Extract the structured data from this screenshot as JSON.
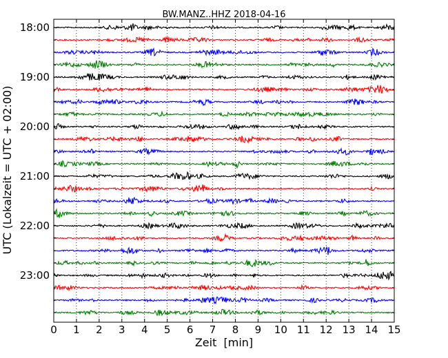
{
  "chart_data": {
    "type": "line",
    "title": "BW.MANZ..HHZ 2018-04-16",
    "xlabel": "Zeit  [min]",
    "ylabel": "UTC (Lokalzeit = UTC + 02:00)",
    "xlim": [
      0,
      15
    ],
    "x_ticks": [
      "0",
      "1",
      "2",
      "3",
      "4",
      "5",
      "6",
      "7",
      "8",
      "9",
      "10",
      "11",
      "12",
      "13",
      "14",
      "15"
    ],
    "y_tick_labels": [
      "18:00",
      "19:00",
      "20:00",
      "21:00",
      "22:00",
      "23:00"
    ],
    "grid": "vertical-dotted",
    "series_colors": [
      "#000000",
      "#ff0000",
      "#0000ff",
      "#007f00"
    ],
    "traces": [
      {
        "start": "18:00"
      },
      {
        "start": "18:15"
      },
      {
        "start": "18:30"
      },
      {
        "start": "18:45"
      },
      {
        "start": "19:00"
      },
      {
        "start": "19:15"
      },
      {
        "start": "19:30"
      },
      {
        "start": "19:45"
      },
      {
        "start": "20:00"
      },
      {
        "start": "20:15"
      },
      {
        "start": "20:30"
      },
      {
        "start": "20:45"
      },
      {
        "start": "21:00"
      },
      {
        "start": "21:15"
      },
      {
        "start": "21:30"
      },
      {
        "start": "21:45"
      },
      {
        "start": "22:00"
      },
      {
        "start": "22:15"
      },
      {
        "start": "22:30"
      },
      {
        "start": "22:45"
      },
      {
        "start": "23:00"
      },
      {
        "start": "23:15"
      },
      {
        "start": "23:30"
      },
      {
        "start": "23:45"
      }
    ]
  }
}
